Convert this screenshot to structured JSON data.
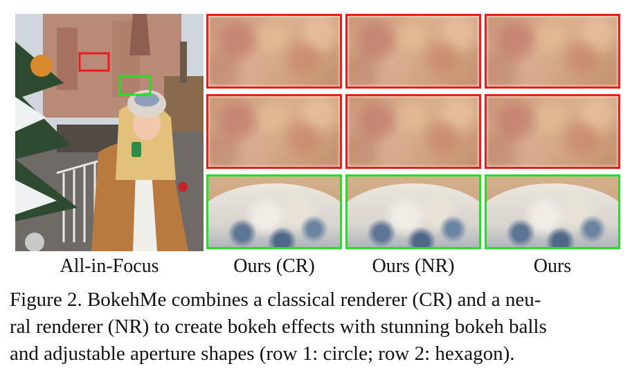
{
  "figure": {
    "column_labels": [
      "All-in-Focus",
      "Ours (CR)",
      "Ours (NR)",
      "Ours"
    ],
    "caption_lines": [
      "Figure 2. BokehMe combines a classical renderer (CR) and a neu-",
      "ral renderer (NR) to create bokeh effects with stunning bokeh balls",
      "and adjustable aperture shapes (row 1: circle; row 2: hexagon)."
    ],
    "colors": {
      "red_box": "#ee1b1b",
      "green_box": "#22e122"
    }
  }
}
